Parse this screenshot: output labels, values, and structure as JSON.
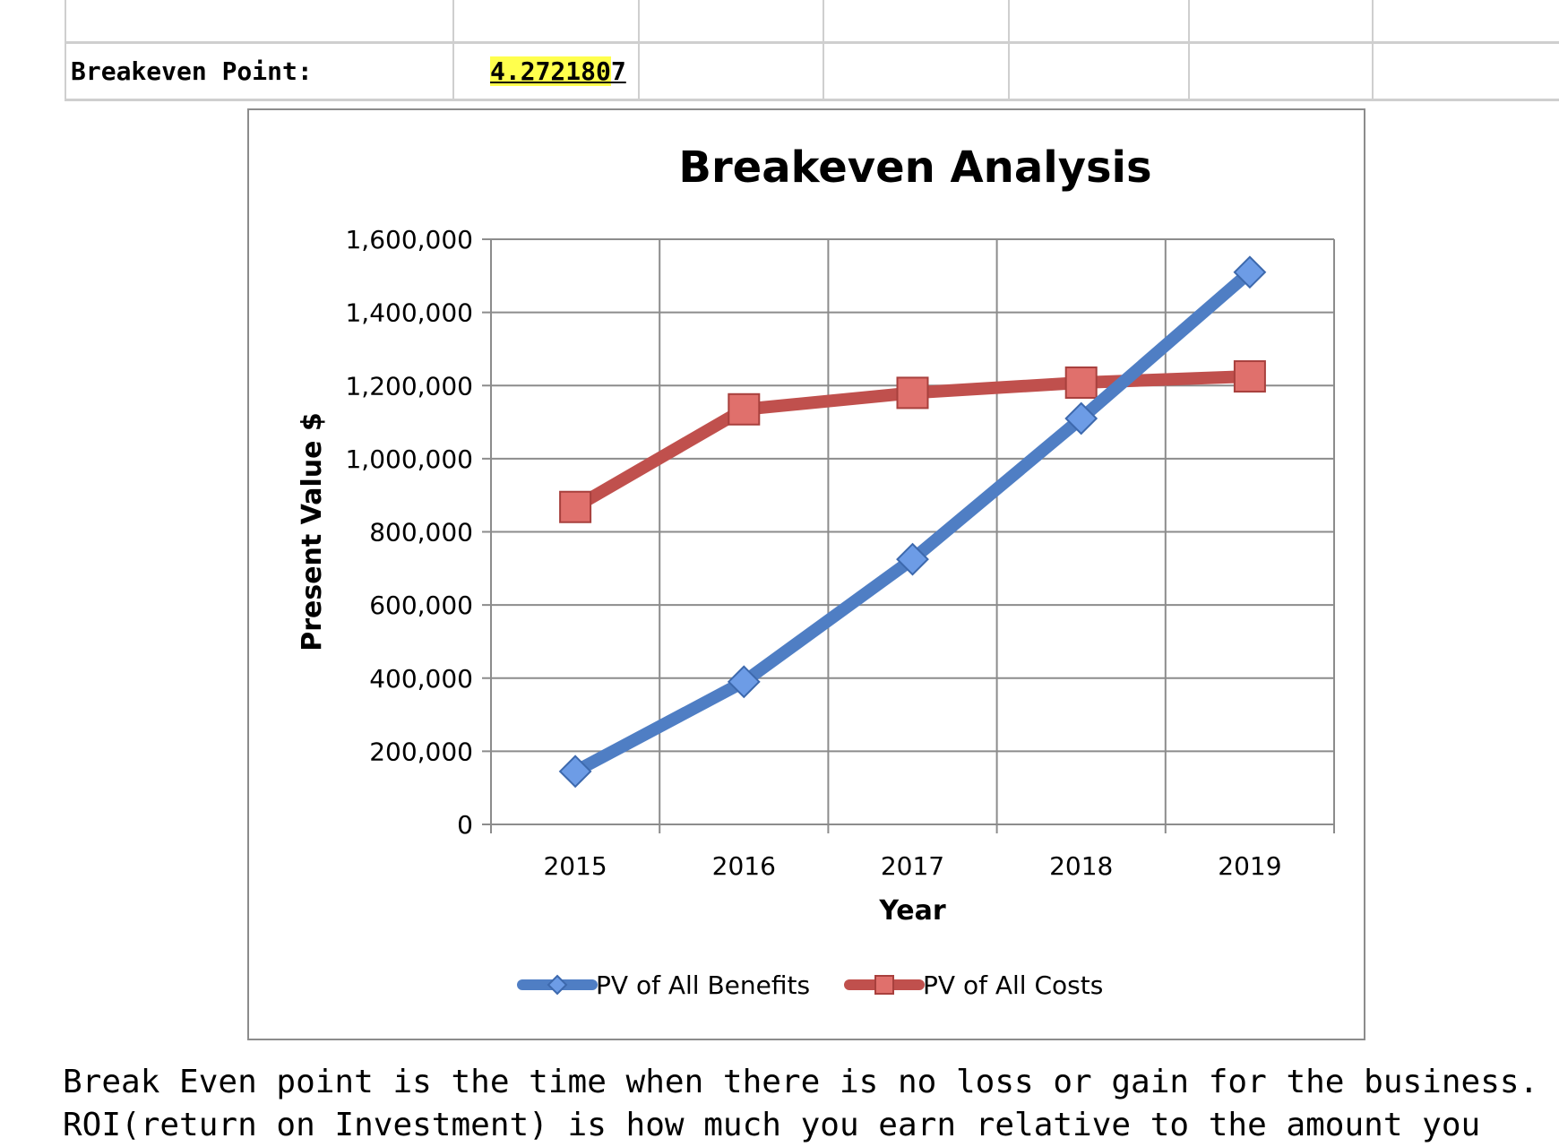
{
  "sheet": {
    "breakeven_label": "Breakeven Point:",
    "breakeven_value_highlighted": "4.272180",
    "breakeven_value_rest": "7"
  },
  "colors": {
    "benefits": "#4f7ec4",
    "benefits_marker": "#6d9ce6",
    "costs": "#c0504d",
    "costs_marker": "#e0706c",
    "highlight": "#ffff4d",
    "grid": "#8c8c8c"
  },
  "chart_data": {
    "type": "line",
    "title": "Breakeven Analysis",
    "xlabel": "Year",
    "ylabel": "Present Value $",
    "categories": [
      "2015",
      "2016",
      "2017",
      "2018",
      "2019"
    ],
    "ylim": [
      0,
      1600000
    ],
    "ytick_labels": [
      "0",
      "200,000",
      "400,000",
      "600,000",
      "800,000",
      "1,000,000",
      "1,200,000",
      "1,400,000",
      "1,600,000"
    ],
    "grid": true,
    "legend_position": "bottom",
    "series": [
      {
        "name": "PV of All Benefits",
        "marker": "diamond",
        "values": [
          145000,
          390000,
          725000,
          1110000,
          1510000
        ]
      },
      {
        "name": "PV of All Costs",
        "marker": "square",
        "values": [
          868000,
          1135000,
          1180000,
          1208000,
          1225000
        ]
      }
    ]
  },
  "paragraph": {
    "line1": "Break Even point is the time when there is no loss or gain for the business.",
    "line2": "ROI(return on Investment) is how much you earn relative to the amount you"
  }
}
